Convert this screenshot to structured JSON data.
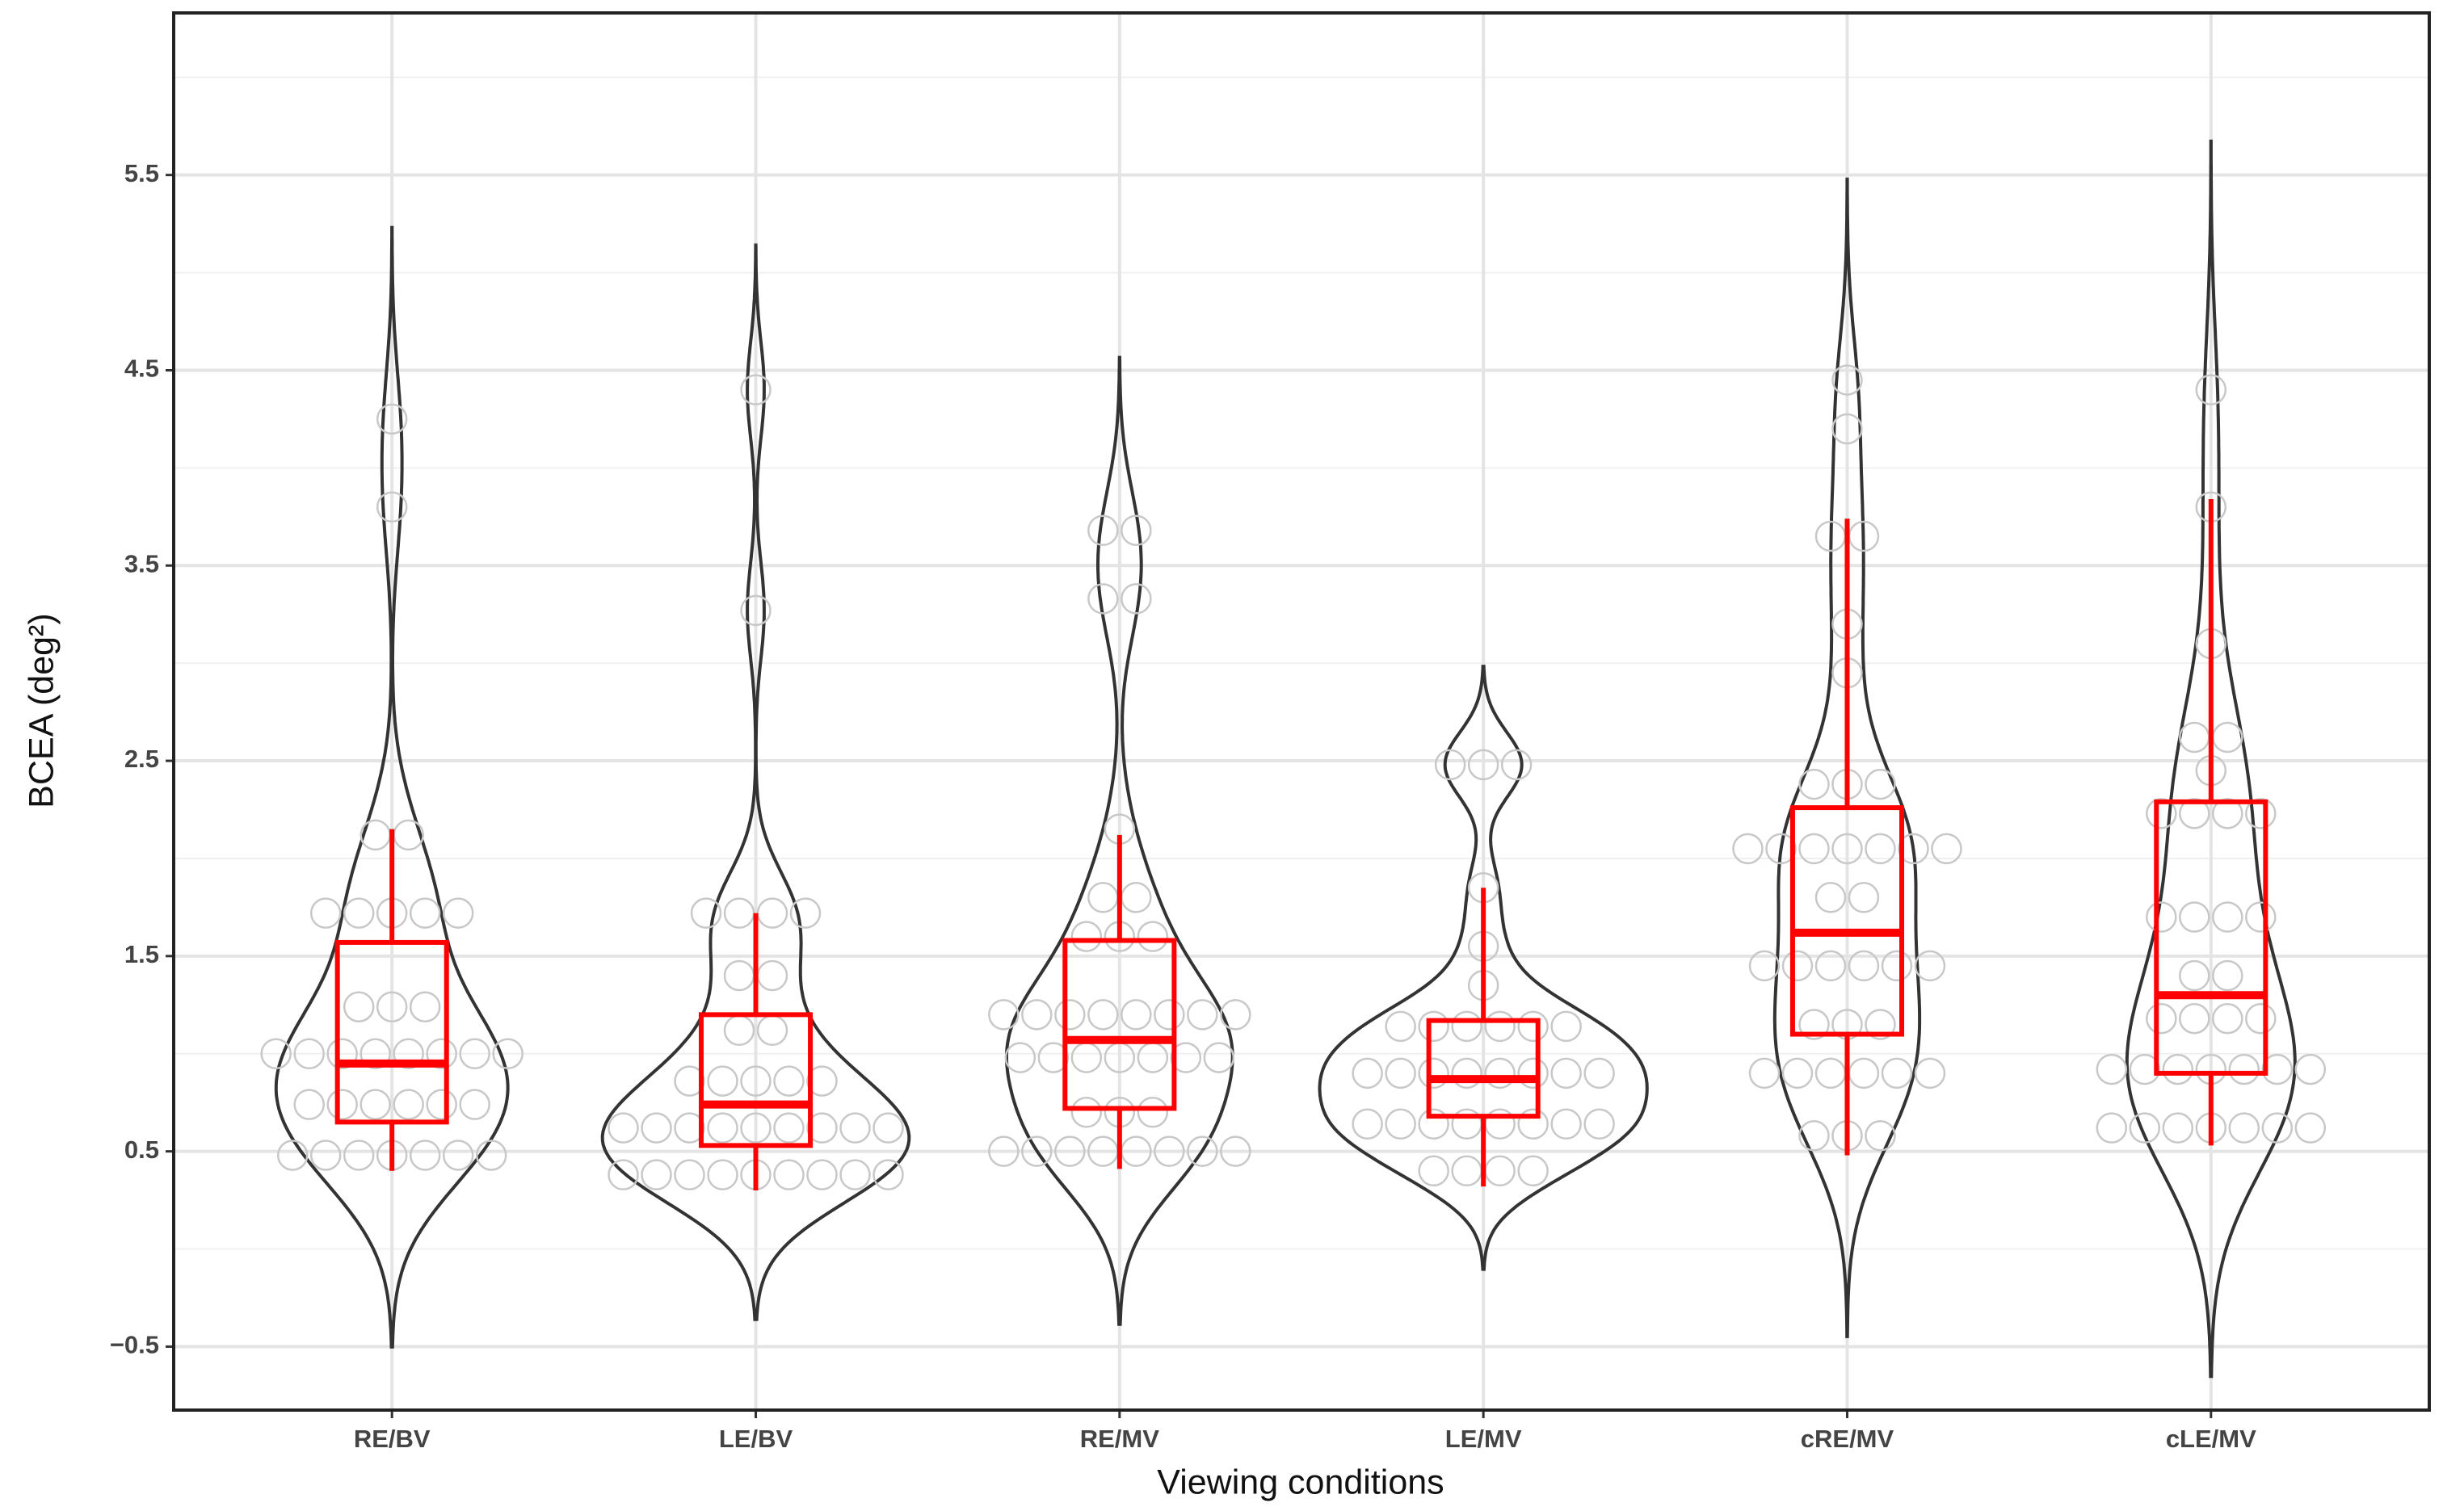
{
  "chart_data": {
    "type": "violin",
    "x_label": "Viewing conditions",
    "y_label": "BCEA (deg²)",
    "categories": [
      "RE/BV",
      "LE/BV",
      "RE/MV",
      "LE/MV",
      "cRE/MV",
      "cLE/MV"
    ],
    "points": [
      [
        0.48,
        0.48,
        0.48,
        0.48,
        0.48,
        0.48,
        0.48,
        0.74,
        0.74,
        0.74,
        0.74,
        0.74,
        0.74,
        1.0,
        1.0,
        1.0,
        1.0,
        1.0,
        1.0,
        1.0,
        1.0,
        1.24,
        1.24,
        1.24,
        1.72,
        1.72,
        1.72,
        1.72,
        1.72,
        2.12,
        2.12,
        3.8,
        4.25
      ],
      [
        0.38,
        0.38,
        0.38,
        0.38,
        0.38,
        0.38,
        0.38,
        0.38,
        0.38,
        0.62,
        0.62,
        0.62,
        0.62,
        0.62,
        0.62,
        0.62,
        0.62,
        0.62,
        0.86,
        0.86,
        0.86,
        0.86,
        0.86,
        1.12,
        1.12,
        1.4,
        1.4,
        1.72,
        1.72,
        1.72,
        1.72,
        3.27,
        4.4
      ],
      [
        0.5,
        0.5,
        0.5,
        0.5,
        0.5,
        0.5,
        0.5,
        0.5,
        0.7,
        0.7,
        0.7,
        0.98,
        0.98,
        0.98,
        0.98,
        0.98,
        0.98,
        0.98,
        1.2,
        1.2,
        1.2,
        1.2,
        1.2,
        1.2,
        1.2,
        1.2,
        1.6,
        1.6,
        1.6,
        1.8,
        1.8,
        2.15,
        3.33,
        3.33,
        3.68,
        3.68
      ],
      [
        0.4,
        0.4,
        0.4,
        0.4,
        0.64,
        0.64,
        0.64,
        0.64,
        0.64,
        0.64,
        0.64,
        0.64,
        0.9,
        0.9,
        0.9,
        0.9,
        0.9,
        0.9,
        0.9,
        0.9,
        1.14,
        1.14,
        1.14,
        1.14,
        1.14,
        1.14,
        1.35,
        1.55,
        1.85,
        2.48,
        2.48,
        2.48
      ],
      [
        0.58,
        0.58,
        0.58,
        0.9,
        0.9,
        0.9,
        0.9,
        0.9,
        0.9,
        1.15,
        1.15,
        1.15,
        1.45,
        1.45,
        1.45,
        1.45,
        1.45,
        1.45,
        1.8,
        1.8,
        2.05,
        2.05,
        2.05,
        2.05,
        2.05,
        2.05,
        2.05,
        2.38,
        2.38,
        2.38,
        2.95,
        3.2,
        3.65,
        3.65,
        4.2,
        4.45
      ],
      [
        0.62,
        0.62,
        0.62,
        0.62,
        0.62,
        0.62,
        0.62,
        0.92,
        0.92,
        0.92,
        0.92,
        0.92,
        0.92,
        0.92,
        1.18,
        1.18,
        1.18,
        1.18,
        1.4,
        1.4,
        1.7,
        1.7,
        1.7,
        1.7,
        2.23,
        2.23,
        2.23,
        2.23,
        2.45,
        2.62,
        2.62,
        3.1,
        3.8,
        4.4
      ]
    ],
    "box": [
      [
        0.4,
        0.65,
        0.95,
        1.57,
        2.15
      ],
      [
        0.3,
        0.53,
        0.74,
        1.2,
        1.72
      ],
      [
        0.41,
        0.72,
        1.07,
        1.58,
        2.12
      ],
      [
        0.32,
        0.68,
        0.87,
        1.17,
        1.85
      ],
      [
        0.48,
        1.1,
        1.62,
        2.26,
        3.74
      ],
      [
        0.53,
        0.9,
        1.3,
        2.29,
        3.84
      ]
    ],
    "violin_color": "#333333",
    "box_color": "#ff0000",
    "point_color": "#c8c8c8",
    "ylim": [
      -0.825,
      6.33
    ],
    "yticks": [
      {
        "value": -0.5,
        "label": "−0.5"
      },
      0.5,
      1.5,
      2.5,
      3.5,
      4.5,
      5.5
    ],
    "minor_yticks": [
      0,
      1,
      2,
      3,
      4,
      5,
      6
    ],
    "grid": true
  }
}
